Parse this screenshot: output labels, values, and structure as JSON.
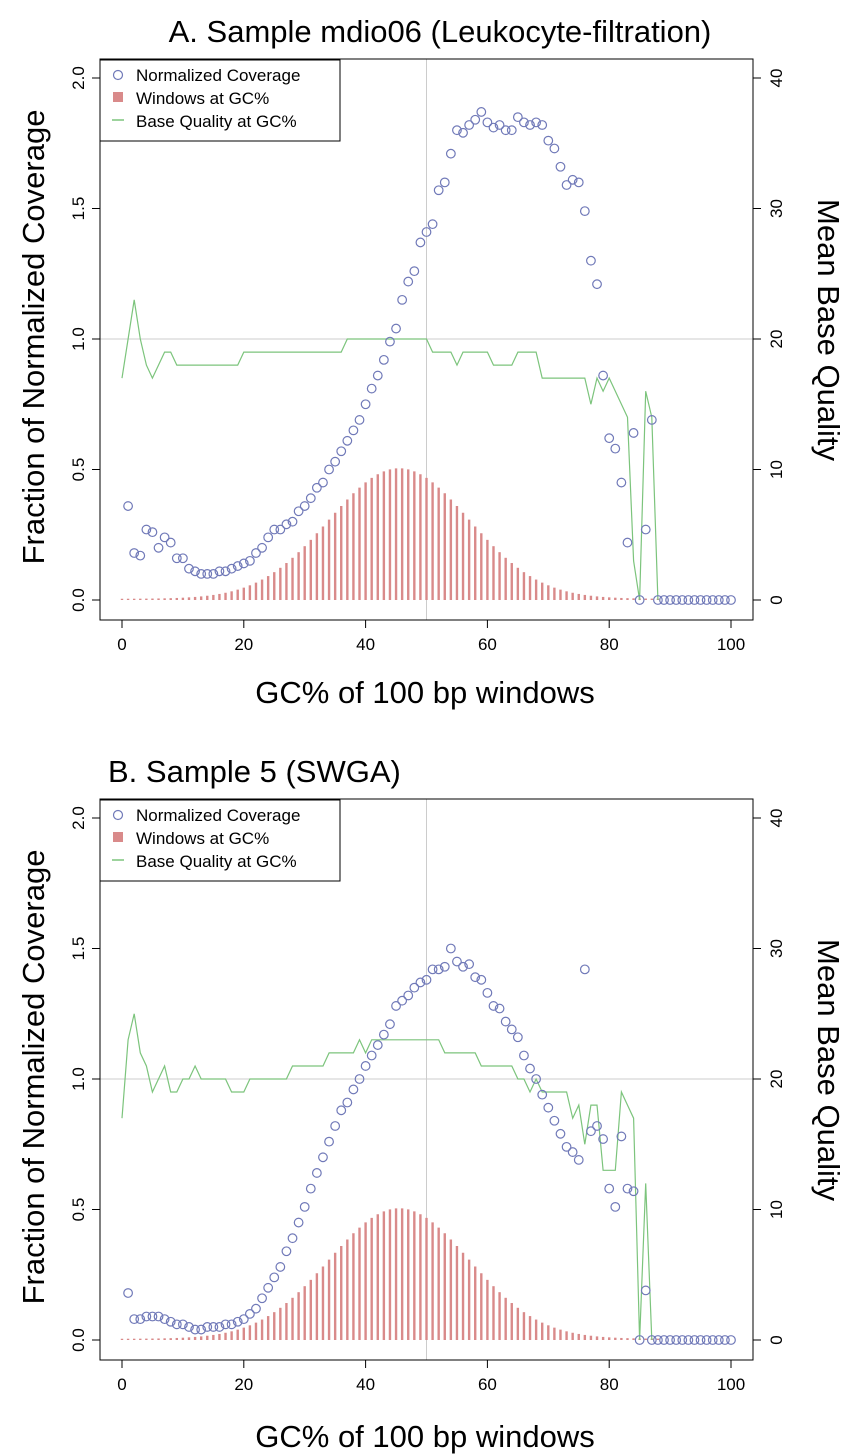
{
  "chart_data": [
    {
      "id": "panel-a",
      "type": "scatter",
      "title": "A. Sample mdio06 (Leukocyte-filtration)",
      "xlabel": "GC% of 100 bp windows",
      "ylabel": "Fraction of Normalized Coverage",
      "y2label": "Mean Base Quality",
      "xlim": [
        0,
        100
      ],
      "ylim": [
        0,
        2.0
      ],
      "y2lim": [
        0,
        40
      ],
      "x_ticks": [
        "0",
        "20",
        "40",
        "60",
        "80",
        "100"
      ],
      "y_ticks": [
        "0.0",
        "0.5",
        "1.0",
        "1.5",
        "2.0"
      ],
      "y2_ticks": [
        "0",
        "10",
        "20",
        "30",
        "40"
      ],
      "reference_lines": {
        "x": 50,
        "y": 1.0
      },
      "grid": false,
      "legend_position": "top-left",
      "colors": {
        "coverage": "#7079b8",
        "windows": "#d98a8a",
        "quality": "#7cc47c",
        "reference": "#cccccc"
      },
      "legend": [
        "Normalized Coverage",
        "Windows at GC%",
        "Base Quality at GC%"
      ],
      "series": [
        {
          "name": "Normalized Coverage",
          "axis": "left",
          "x": [
            1,
            2,
            3,
            4,
            5,
            6,
            7,
            8,
            9,
            10,
            11,
            12,
            13,
            14,
            15,
            16,
            17,
            18,
            19,
            20,
            21,
            22,
            23,
            24,
            25,
            26,
            27,
            28,
            29,
            30,
            31,
            32,
            33,
            34,
            35,
            36,
            37,
            38,
            39,
            40,
            41,
            42,
            43,
            44,
            45,
            46,
            47,
            48,
            49,
            50,
            51,
            52,
            53,
            54,
            55,
            56,
            57,
            58,
            59,
            60,
            61,
            62,
            63,
            64,
            65,
            66,
            67,
            68,
            69,
            70,
            71,
            72,
            73,
            74,
            75,
            76,
            77,
            78,
            79,
            80,
            81,
            82,
            83,
            84,
            85,
            86,
            87,
            88,
            89,
            90,
            91,
            92,
            93,
            94,
            95,
            96,
            97,
            98,
            99,
            100
          ],
          "y": [
            0.36,
            0.18,
            0.17,
            0.27,
            0.26,
            0.2,
            0.24,
            0.22,
            0.16,
            0.16,
            0.12,
            0.11,
            0.1,
            0.1,
            0.1,
            0.11,
            0.11,
            0.12,
            0.13,
            0.14,
            0.15,
            0.18,
            0.2,
            0.24,
            0.27,
            0.27,
            0.29,
            0.3,
            0.34,
            0.36,
            0.39,
            0.43,
            0.45,
            0.5,
            0.53,
            0.57,
            0.61,
            0.65,
            0.69,
            0.75,
            0.81,
            0.86,
            0.92,
            0.99,
            1.04,
            1.15,
            1.22,
            1.26,
            1.37,
            1.41,
            1.44,
            1.57,
            1.6,
            1.71,
            1.8,
            1.79,
            1.82,
            1.84,
            1.87,
            1.83,
            1.81,
            1.82,
            1.8,
            1.8,
            1.85,
            1.83,
            1.82,
            1.83,
            1.82,
            1.76,
            1.73,
            1.66,
            1.59,
            1.61,
            1.6,
            1.49,
            1.3,
            1.21,
            0.86,
            0.62,
            0.58,
            0.45,
            0.22,
            0.64,
            0.0,
            0.27,
            0.69,
            0.0,
            0.0,
            0.0,
            0.0,
            0.0,
            0.0,
            0.0,
            0.0,
            0.0,
            0.0,
            0.0,
            0.0,
            0.0
          ]
        },
        {
          "name": "Windows at GC%",
          "axis": "left",
          "distribution": "gaussian",
          "mean": 45.5,
          "sd": 11.5,
          "peak": 0.5,
          "x_range": [
            0,
            88
          ]
        },
        {
          "name": "Base Quality at GC%",
          "axis": "right",
          "points": [
            [
              0,
              17
            ],
            [
              1,
              20
            ],
            [
              2,
              23
            ],
            [
              3,
              20
            ],
            [
              4,
              18
            ],
            [
              5,
              17
            ],
            [
              6,
              18
            ],
            [
              7,
              19
            ],
            [
              8,
              19
            ],
            [
              9,
              18
            ],
            [
              19,
              18
            ],
            [
              20,
              19
            ],
            [
              36,
              19
            ],
            [
              37,
              20
            ],
            [
              50,
              20
            ],
            [
              51,
              19
            ],
            [
              54,
              19
            ],
            [
              55,
              18
            ],
            [
              56,
              19
            ],
            [
              60,
              19
            ],
            [
              61,
              18
            ],
            [
              64,
              18
            ],
            [
              65,
              19
            ],
            [
              68,
              19
            ],
            [
              69,
              17
            ],
            [
              76,
              17
            ],
            [
              77,
              15
            ],
            [
              78,
              17
            ],
            [
              79,
              16
            ],
            [
              80,
              17
            ],
            [
              83,
              14
            ],
            [
              84,
              3
            ],
            [
              85,
              0
            ],
            [
              86,
              16
            ],
            [
              87,
              14
            ],
            [
              88,
              0
            ]
          ]
        }
      ]
    },
    {
      "id": "panel-b",
      "type": "scatter",
      "title": "B. Sample 5 (SWGA)",
      "xlabel": "GC% of 100 bp windows",
      "ylabel": "Fraction of Normalized Coverage",
      "y2label": "Mean Base Quality",
      "xlim": [
        0,
        100
      ],
      "ylim": [
        0,
        2.0
      ],
      "y2lim": [
        0,
        40
      ],
      "x_ticks": [
        "0",
        "20",
        "40",
        "60",
        "80",
        "100"
      ],
      "y_ticks": [
        "0.0",
        "0.5",
        "1.0",
        "1.5",
        "2.0"
      ],
      "y2_ticks": [
        "0",
        "10",
        "20",
        "30",
        "40"
      ],
      "reference_lines": {
        "x": 50,
        "y": 1.0
      },
      "grid": false,
      "legend_position": "top-left",
      "colors": {
        "coverage": "#7079b8",
        "windows": "#d98a8a",
        "quality": "#7cc47c",
        "reference": "#cccccc"
      },
      "legend": [
        "Normalized Coverage",
        "Windows at GC%",
        "Base Quality at GC%"
      ],
      "series": [
        {
          "name": "Normalized Coverage",
          "axis": "left",
          "x": [
            1,
            2,
            3,
            4,
            5,
            6,
            7,
            8,
            9,
            10,
            11,
            12,
            13,
            14,
            15,
            16,
            17,
            18,
            19,
            20,
            21,
            22,
            23,
            24,
            25,
            26,
            27,
            28,
            29,
            30,
            31,
            32,
            33,
            34,
            35,
            36,
            37,
            38,
            39,
            40,
            41,
            42,
            43,
            44,
            45,
            46,
            47,
            48,
            49,
            50,
            51,
            52,
            53,
            54,
            55,
            56,
            57,
            58,
            59,
            60,
            61,
            62,
            63,
            64,
            65,
            66,
            67,
            68,
            69,
            70,
            71,
            72,
            73,
            74,
            75,
            76,
            77,
            78,
            79,
            80,
            81,
            82,
            83,
            84,
            85,
            86,
            87,
            88,
            89,
            90,
            91,
            92,
            93,
            94,
            95,
            96,
            97,
            98,
            99,
            100
          ],
          "y": [
            0.18,
            0.08,
            0.08,
            0.09,
            0.09,
            0.09,
            0.08,
            0.07,
            0.06,
            0.06,
            0.05,
            0.04,
            0.04,
            0.05,
            0.05,
            0.05,
            0.06,
            0.06,
            0.07,
            0.08,
            0.1,
            0.12,
            0.16,
            0.2,
            0.24,
            0.28,
            0.34,
            0.39,
            0.45,
            0.51,
            0.58,
            0.64,
            0.7,
            0.76,
            0.82,
            0.88,
            0.91,
            0.96,
            1.0,
            1.05,
            1.09,
            1.13,
            1.17,
            1.21,
            1.28,
            1.3,
            1.32,
            1.35,
            1.37,
            1.38,
            1.42,
            1.42,
            1.43,
            1.5,
            1.45,
            1.43,
            1.44,
            1.39,
            1.38,
            1.33,
            1.28,
            1.27,
            1.22,
            1.19,
            1.16,
            1.09,
            1.04,
            1.0,
            0.94,
            0.89,
            0.84,
            0.79,
            0.74,
            0.72,
            0.69,
            1.42,
            0.8,
            0.82,
            0.77,
            0.58,
            0.51,
            0.78,
            0.58,
            0.57,
            0.0,
            0.19,
            0.0,
            0.0,
            0.0,
            0.0,
            0.0,
            0.0,
            0.0,
            0.0,
            0.0,
            0.0,
            0.0,
            0.0,
            0.0,
            0.0
          ]
        },
        {
          "name": "Windows at GC%",
          "axis": "left",
          "distribution": "gaussian",
          "mean": 45.5,
          "sd": 11.5,
          "peak": 0.5,
          "x_range": [
            0,
            88
          ]
        },
        {
          "name": "Base Quality at GC%",
          "axis": "right",
          "points": [
            [
              0,
              17
            ],
            [
              1,
              23
            ],
            [
              2,
              25
            ],
            [
              3,
              22
            ],
            [
              4,
              21
            ],
            [
              5,
              19
            ],
            [
              6,
              20
            ],
            [
              7,
              21
            ],
            [
              8,
              19
            ],
            [
              9,
              19
            ],
            [
              10,
              20
            ],
            [
              11,
              20
            ],
            [
              12,
              21
            ],
            [
              13,
              20
            ],
            [
              17,
              20
            ],
            [
              18,
              19
            ],
            [
              20,
              19
            ],
            [
              21,
              20
            ],
            [
              27,
              20
            ],
            [
              28,
              21
            ],
            [
              33,
              21
            ],
            [
              34,
              22
            ],
            [
              38,
              22
            ],
            [
              39,
              23
            ],
            [
              40,
              22
            ],
            [
              41,
              23
            ],
            [
              52,
              23
            ],
            [
              53,
              22
            ],
            [
              58,
              22
            ],
            [
              59,
              21
            ],
            [
              64,
              21
            ],
            [
              65,
              20
            ],
            [
              66,
              20
            ],
            [
              67,
              19
            ],
            [
              68,
              20
            ],
            [
              69,
              19
            ],
            [
              73,
              19
            ],
            [
              74,
              17
            ],
            [
              75,
              18
            ],
            [
              76,
              15
            ],
            [
              77,
              18
            ],
            [
              78,
              18
            ],
            [
              79,
              13
            ],
            [
              81,
              13
            ],
            [
              82,
              19
            ],
            [
              83,
              18
            ],
            [
              84,
              17
            ],
            [
              85,
              0
            ],
            [
              86,
              12
            ],
            [
              87,
              0
            ]
          ]
        }
      ]
    }
  ]
}
